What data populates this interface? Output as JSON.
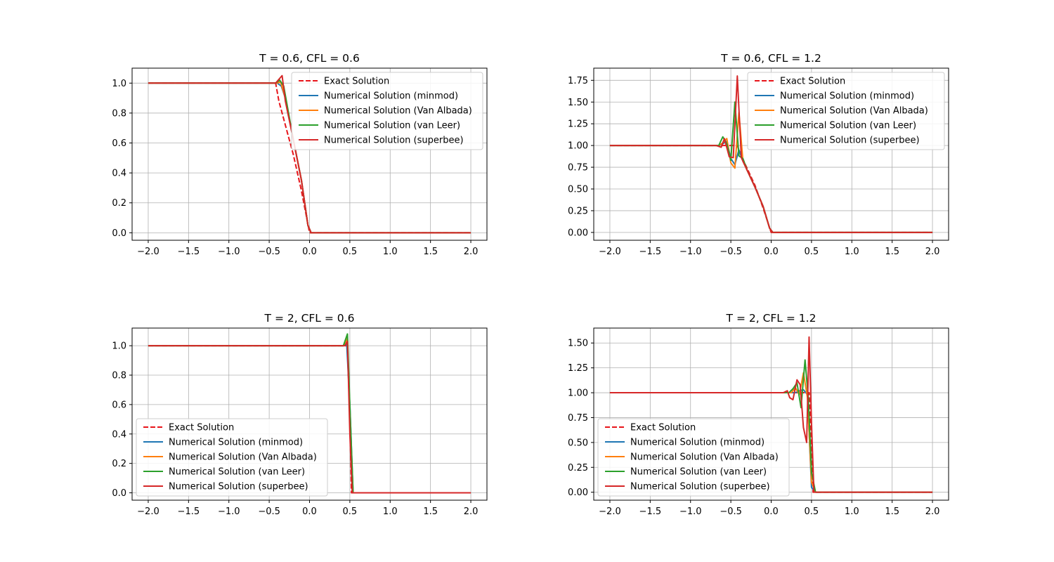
{
  "legend_labels": [
    "Exact Solution",
    "Numerical Solution (minmod)",
    "Numerical Solution (Van Albada)",
    "Numerical Solution (van Leer)",
    "Numerical Solution (superbee)"
  ],
  "colors": {
    "exact": "#e8141a",
    "minmod": "#1f77b4",
    "van_albada": "#ff7f0e",
    "van_leer": "#2ca02c",
    "superbee": "#d62728",
    "grid": "#b0b0b0"
  },
  "chart_data": [
    {
      "type": "line",
      "title": "T = 0.6, CFL = 0.6",
      "xlim": [
        -2.2,
        2.2
      ],
      "ylim": [
        -0.05,
        1.1
      ],
      "xticks": [
        -2.0,
        -1.5,
        -1.0,
        -0.5,
        0.0,
        0.5,
        1.0,
        1.5,
        2.0
      ],
      "yticks": [
        0.0,
        0.2,
        0.4,
        0.6,
        0.8,
        1.0
      ],
      "xtick_labels": [
        "−2.0",
        "−1.5",
        "−1.0",
        "−0.5",
        "0.0",
        "0.5",
        "1.0",
        "1.5",
        "2.0"
      ],
      "ytick_labels": [
        "0.0",
        "0.2",
        "0.4",
        "0.6",
        "0.8",
        "1.0"
      ],
      "grid": true,
      "legend": "upper right",
      "series": [
        {
          "name": "Exact Solution",
          "key": "exact",
          "dashed": true,
          "x": [
            -2.0,
            -0.42,
            -0.38,
            -0.3,
            -0.2,
            -0.1,
            0.0,
            2.0
          ],
          "y": [
            1.0,
            1.0,
            0.88,
            0.72,
            0.52,
            0.28,
            0.0,
            0.0
          ]
        },
        {
          "name": "Numerical Solution (minmod)",
          "key": "minmod",
          "dashed": false,
          "x": [
            -2.0,
            -0.4,
            -0.35,
            -0.3,
            -0.2,
            -0.1,
            -0.02,
            0.02,
            2.0
          ],
          "y": [
            1.0,
            1.0,
            0.98,
            0.9,
            0.62,
            0.35,
            0.05,
            0.0,
            0.0
          ]
        },
        {
          "name": "Numerical Solution (Van Albada)",
          "key": "van_albada",
          "dashed": false,
          "x": [
            -2.0,
            -0.4,
            -0.36,
            -0.3,
            -0.2,
            -0.1,
            -0.02,
            0.02,
            2.0
          ],
          "y": [
            1.0,
            1.0,
            1.01,
            0.9,
            0.62,
            0.35,
            0.05,
            0.0,
            0.0
          ]
        },
        {
          "name": "Numerical Solution (van Leer)",
          "key": "van_leer",
          "dashed": false,
          "x": [
            -2.0,
            -0.42,
            -0.37,
            -0.32,
            -0.2,
            -0.1,
            -0.02,
            0.02,
            2.0
          ],
          "y": [
            1.0,
            1.0,
            1.02,
            0.98,
            0.62,
            0.35,
            0.05,
            0.0,
            0.0
          ]
        },
        {
          "name": "Numerical Solution (superbee)",
          "key": "superbee",
          "dashed": false,
          "x": [
            -2.0,
            -0.42,
            -0.34,
            -0.3,
            -0.2,
            -0.1,
            -0.02,
            0.02,
            2.0
          ],
          "y": [
            1.0,
            1.0,
            1.05,
            0.88,
            0.62,
            0.35,
            0.05,
            0.0,
            0.0
          ]
        }
      ]
    },
    {
      "type": "line",
      "title": "T = 0.6, CFL = 1.2",
      "xlim": [
        -2.2,
        2.2
      ],
      "ylim": [
        -0.09,
        1.89
      ],
      "xticks": [
        -2.0,
        -1.5,
        -1.0,
        -0.5,
        0.0,
        0.5,
        1.0,
        1.5,
        2.0
      ],
      "yticks": [
        0.0,
        0.25,
        0.5,
        0.75,
        1.0,
        1.25,
        1.5,
        1.75
      ],
      "xtick_labels": [
        "−2.0",
        "−1.5",
        "−1.0",
        "−0.5",
        "0.0",
        "0.5",
        "1.0",
        "1.5",
        "2.0"
      ],
      "ytick_labels": [
        "0.00",
        "0.25",
        "0.50",
        "0.75",
        "1.00",
        "1.25",
        "1.50",
        "1.75"
      ],
      "grid": true,
      "legend": "upper right",
      "series": [
        {
          "name": "Exact Solution",
          "key": "exact",
          "dashed": true,
          "x": [
            -2.0,
            -0.42,
            -0.38,
            -0.3,
            -0.2,
            -0.1,
            0.0,
            2.0
          ],
          "y": [
            1.0,
            1.0,
            0.9,
            0.74,
            0.54,
            0.28,
            0.0,
            0.0
          ]
        },
        {
          "name": "Numerical Solution (minmod)",
          "key": "minmod",
          "dashed": false,
          "x": [
            -2.0,
            -0.65,
            -0.6,
            -0.55,
            -0.5,
            -0.45,
            -0.4,
            -0.35,
            -0.3,
            -0.2,
            -0.1,
            -0.02,
            0.02,
            2.0
          ],
          "y": [
            1.0,
            1.0,
            1.02,
            1.05,
            0.85,
            0.78,
            0.95,
            0.82,
            0.72,
            0.52,
            0.3,
            0.05,
            0.0,
            0.0
          ]
        },
        {
          "name": "Numerical Solution (Van Albada)",
          "key": "van_albada",
          "dashed": false,
          "x": [
            -2.0,
            -0.65,
            -0.6,
            -0.55,
            -0.5,
            -0.45,
            -0.4,
            -0.35,
            -0.3,
            -0.2,
            -0.1,
            -0.02,
            0.02,
            2.0
          ],
          "y": [
            1.0,
            1.0,
            1.03,
            1.08,
            0.8,
            0.74,
            1.38,
            0.82,
            0.72,
            0.52,
            0.3,
            0.05,
            0.0,
            0.0
          ]
        },
        {
          "name": "Numerical Solution (van Leer)",
          "key": "van_leer",
          "dashed": false,
          "x": [
            -2.0,
            -0.65,
            -0.6,
            -0.55,
            -0.5,
            -0.45,
            -0.4,
            -0.35,
            -0.3,
            -0.2,
            -0.1,
            -0.02,
            0.02,
            2.0
          ],
          "y": [
            1.0,
            1.0,
            1.1,
            1.02,
            0.83,
            1.5,
            0.88,
            0.85,
            0.72,
            0.52,
            0.3,
            0.05,
            0.0,
            0.0
          ]
        },
        {
          "name": "Numerical Solution (superbee)",
          "key": "superbee",
          "dashed": false,
          "x": [
            -2.0,
            -0.68,
            -0.62,
            -0.58,
            -0.52,
            -0.47,
            -0.42,
            -0.37,
            -0.3,
            -0.2,
            -0.1,
            -0.02,
            0.02,
            2.0
          ],
          "y": [
            1.0,
            1.0,
            0.98,
            1.08,
            0.87,
            0.86,
            1.8,
            0.86,
            0.72,
            0.52,
            0.3,
            0.05,
            0.0,
            0.0
          ]
        }
      ]
    },
    {
      "type": "line",
      "title": "T = 2, CFL = 0.6",
      "xlim": [
        -2.2,
        2.2
      ],
      "ylim": [
        -0.05,
        1.12
      ],
      "xticks": [
        -2.0,
        -1.5,
        -1.0,
        -0.5,
        0.0,
        0.5,
        1.0,
        1.5,
        2.0
      ],
      "yticks": [
        0.0,
        0.2,
        0.4,
        0.6,
        0.8,
        1.0
      ],
      "xtick_labels": [
        "−2.0",
        "−1.5",
        "−1.0",
        "−0.5",
        "0.0",
        "0.5",
        "1.0",
        "1.5",
        "2.0"
      ],
      "ytick_labels": [
        "0.0",
        "0.2",
        "0.4",
        "0.6",
        "0.8",
        "1.0"
      ],
      "grid": true,
      "legend": "lower left",
      "series": [
        {
          "name": "Exact Solution",
          "key": "exact",
          "dashed": true,
          "x": [
            -2.0,
            0.47,
            0.5,
            0.52,
            2.0
          ],
          "y": [
            1.0,
            1.0,
            0.5,
            0.0,
            0.0
          ]
        },
        {
          "name": "Numerical Solution (minmod)",
          "key": "minmod",
          "dashed": false,
          "x": [
            -2.0,
            0.42,
            0.46,
            0.5,
            0.54,
            2.0
          ],
          "y": [
            1.0,
            1.0,
            1.02,
            0.6,
            0.0,
            0.0
          ]
        },
        {
          "name": "Numerical Solution (Van Albada)",
          "key": "van_albada",
          "dashed": false,
          "x": [
            -2.0,
            0.42,
            0.47,
            0.5,
            0.54,
            2.0
          ],
          "y": [
            1.0,
            1.0,
            1.05,
            0.55,
            0.0,
            0.0
          ]
        },
        {
          "name": "Numerical Solution (van Leer)",
          "key": "van_leer",
          "dashed": false,
          "x": [
            -2.0,
            0.42,
            0.47,
            0.5,
            0.54,
            2.0
          ],
          "y": [
            1.0,
            1.0,
            1.08,
            0.6,
            0.0,
            0.0
          ]
        },
        {
          "name": "Numerical Solution (superbee)",
          "key": "superbee",
          "dashed": false,
          "x": [
            -2.0,
            0.44,
            0.47,
            0.5,
            0.53,
            2.0
          ],
          "y": [
            1.0,
            1.0,
            1.03,
            0.4,
            0.0,
            0.0
          ]
        }
      ]
    },
    {
      "type": "line",
      "title": "T = 2, CFL = 1.2",
      "xlim": [
        -2.2,
        2.2
      ],
      "ylim": [
        -0.08,
        1.65
      ],
      "xticks": [
        -2.0,
        -1.5,
        -1.0,
        -0.5,
        0.0,
        0.5,
        1.0,
        1.5,
        2.0
      ],
      "yticks": [
        0.0,
        0.25,
        0.5,
        0.75,
        1.0,
        1.25,
        1.5
      ],
      "xtick_labels": [
        "−2.0",
        "−1.5",
        "−1.0",
        "−0.5",
        "0.0",
        "0.5",
        "1.0",
        "1.5",
        "2.0"
      ],
      "ytick_labels": [
        "0.00",
        "0.25",
        "0.50",
        "0.75",
        "1.00",
        "1.25",
        "1.50"
      ],
      "grid": true,
      "legend": "lower left",
      "series": [
        {
          "name": "Exact Solution",
          "key": "exact",
          "dashed": true,
          "x": [
            -2.0,
            0.47,
            0.5,
            0.52,
            2.0
          ],
          "y": [
            1.0,
            1.0,
            0.5,
            0.0,
            0.0
          ]
        },
        {
          "name": "Numerical Solution (minmod)",
          "key": "minmod",
          "dashed": false,
          "x": [
            -2.0,
            0.3,
            0.35,
            0.4,
            0.45,
            0.5,
            0.52,
            0.55,
            2.0
          ],
          "y": [
            1.0,
            1.0,
            1.02,
            1.03,
            0.98,
            0.05,
            0.03,
            0.0,
            0.0
          ]
        },
        {
          "name": "Numerical Solution (Van Albada)",
          "key": "van_albada",
          "dashed": false,
          "x": [
            -2.0,
            0.25,
            0.3,
            0.35,
            0.4,
            0.45,
            0.5,
            0.55,
            2.0
          ],
          "y": [
            1.0,
            1.0,
            1.05,
            0.98,
            1.2,
            0.95,
            0.1,
            0.0,
            0.0
          ]
        },
        {
          "name": "Numerical Solution (van Leer)",
          "key": "van_leer",
          "dashed": false,
          "x": [
            -2.0,
            0.22,
            0.27,
            0.32,
            0.37,
            0.42,
            0.46,
            0.5,
            0.55,
            2.0
          ],
          "y": [
            1.0,
            1.0,
            1.04,
            1.1,
            0.85,
            1.33,
            0.95,
            0.2,
            0.0,
            0.0
          ]
        },
        {
          "name": "Numerical Solution (superbee)",
          "key": "superbee",
          "dashed": false,
          "x": [
            -2.0,
            0.15,
            0.2,
            0.23,
            0.27,
            0.32,
            0.36,
            0.4,
            0.44,
            0.47,
            0.5,
            0.53,
            2.0
          ],
          "y": [
            1.0,
            1.0,
            1.02,
            0.95,
            0.93,
            1.13,
            1.08,
            0.65,
            0.5,
            1.56,
            0.7,
            0.0,
            0.0
          ]
        }
      ]
    }
  ]
}
